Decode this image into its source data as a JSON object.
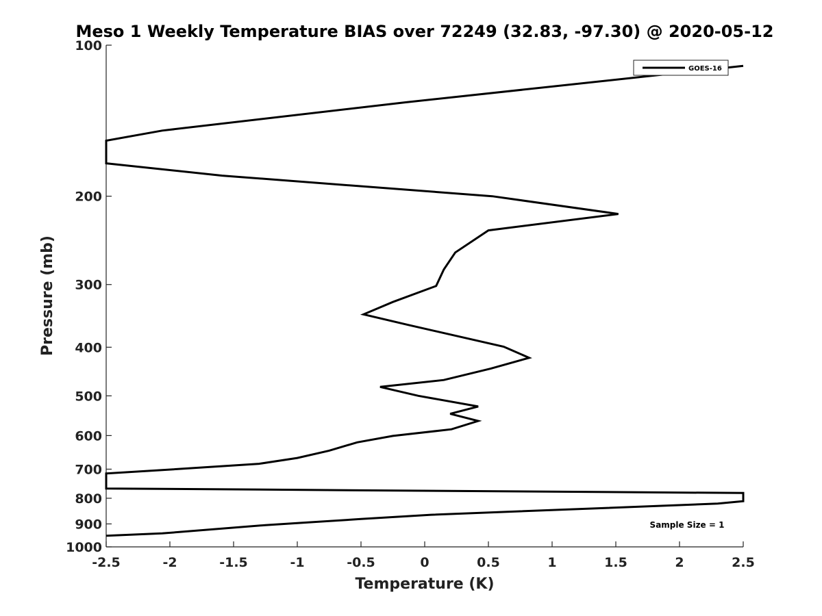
{
  "chart_data": {
    "type": "line",
    "title": "Meso 1 Weekly Temperature BIAS over 72249 (32.83, -97.30) @ 2020-05-12",
    "xlabel": "Temperature (K)",
    "ylabel": "Pressure (mb)",
    "xlim": [
      -2.5,
      2.5
    ],
    "ylim": [
      1000,
      100
    ],
    "yscale": "log",
    "y_inverted": true,
    "grid": false,
    "legend_position": "top-right",
    "x_ticks": [
      -2.5,
      -2,
      -1.5,
      -1,
      -0.5,
      0,
      0.5,
      1,
      1.5,
      2,
      2.5
    ],
    "x_tick_labels": [
      "-2.5",
      "-2",
      "-1.5",
      "-1",
      "-0.5",
      "0",
      "0.5",
      "1",
      "1.5",
      "2",
      "2.5"
    ],
    "y_ticks": [
      100,
      200,
      300,
      400,
      500,
      600,
      700,
      800,
      900,
      1000
    ],
    "y_tick_labels": [
      "100",
      "200",
      "300",
      "400",
      "500",
      "600",
      "700",
      "800",
      "900",
      "1000"
    ],
    "annotation": "Sample Size = 1",
    "series": [
      {
        "name": "GOES-16",
        "color": "#000000",
        "x": [
          2.5,
          -0.15,
          -2.06,
          -2.5,
          -2.5,
          -1.59,
          0.53,
          1.52,
          0.5,
          0.24,
          0.15,
          0.09,
          -0.25,
          -0.48,
          -0.13,
          0.62,
          0.82,
          0.52,
          0.15,
          -0.35,
          -0.05,
          0.42,
          0.2,
          0.42,
          0.21,
          -0.25,
          -0.53,
          -0.75,
          -1.0,
          -1.3,
          -2.06,
          -2.5,
          -2.5,
          2.5,
          2.5,
          2.3,
          0.05,
          -0.5,
          -1.25,
          -2.06,
          -2.5
        ],
        "y": [
          110,
          130,
          148,
          155,
          172,
          182,
          200,
          217,
          234,
          259,
          280,
          302,
          325,
          344,
          361,
          399,
          420,
          441,
          465,
          480,
          500,
          525,
          543,
          561,
          583,
          601,
          619,
          643,
          665,
          683,
          703,
          714,
          765,
          781,
          811,
          820,
          863,
          880,
          905,
          940,
          950
        ]
      }
    ]
  }
}
